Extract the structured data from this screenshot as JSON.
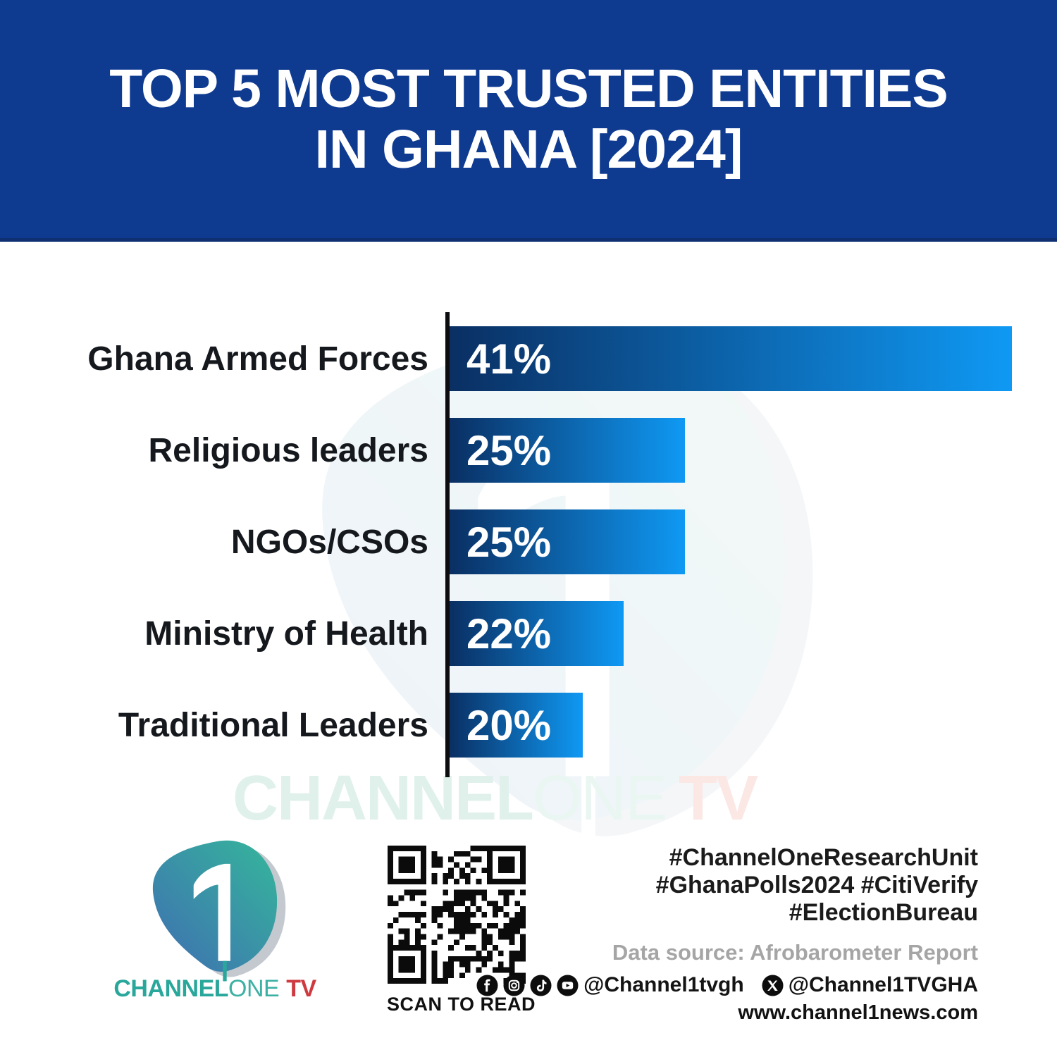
{
  "header": {
    "title_line1": "TOP 5 MOST TRUSTED ENTITIES",
    "title_line2": "IN GHANA [2024]"
  },
  "chart_data": {
    "type": "bar",
    "orientation": "horizontal",
    "title": "TOP 5 MOST TRUSTED ENTITIES IN GHANA [2024]",
    "categories": [
      "Ghana Armed Forces",
      "Religious leaders",
      "NGOs/CSOs",
      "Ministry of Health",
      "Traditional Leaders"
    ],
    "values": [
      41,
      25,
      25,
      22,
      20
    ],
    "value_labels": [
      "41%",
      "25%",
      "25%",
      "22%",
      "20%"
    ],
    "xlabel": "",
    "ylabel": "",
    "unit": "%",
    "grid": false,
    "legend": false,
    "value_label_position": "inside-left",
    "bar_gradient": [
      "#0a2f63",
      "#0f99f4"
    ],
    "axis_line_color": "#0d0d0f"
  },
  "watermark": {
    "channel": "CHANNEL",
    "one": "ONE",
    "tv": "TV"
  },
  "footer": {
    "logo": {
      "wordmark_channel": "CHANNEL",
      "wordmark_one": "ONE",
      "wordmark_tv": "TV"
    },
    "qr_label": "SCAN TO READ",
    "hashtags": [
      "#ChannelOneResearchUnit",
      "#GhanaPolls2024 #CitiVerify",
      "#ElectionBureau"
    ],
    "data_source": "Data source: Afrobarometer Report",
    "social_handle_main": "@Channel1tvgh",
    "social_handle_x": "@Channel1TVGHA",
    "website": "www.channel1news.com"
  },
  "colors": {
    "banner": "#0e3a90",
    "bar_start": "#0a2f63",
    "bar_end": "#0f99f4",
    "logo_teal": "#2aa79b",
    "logo_red": "#ce3a40",
    "gray_text": "#a5a5a5"
  }
}
